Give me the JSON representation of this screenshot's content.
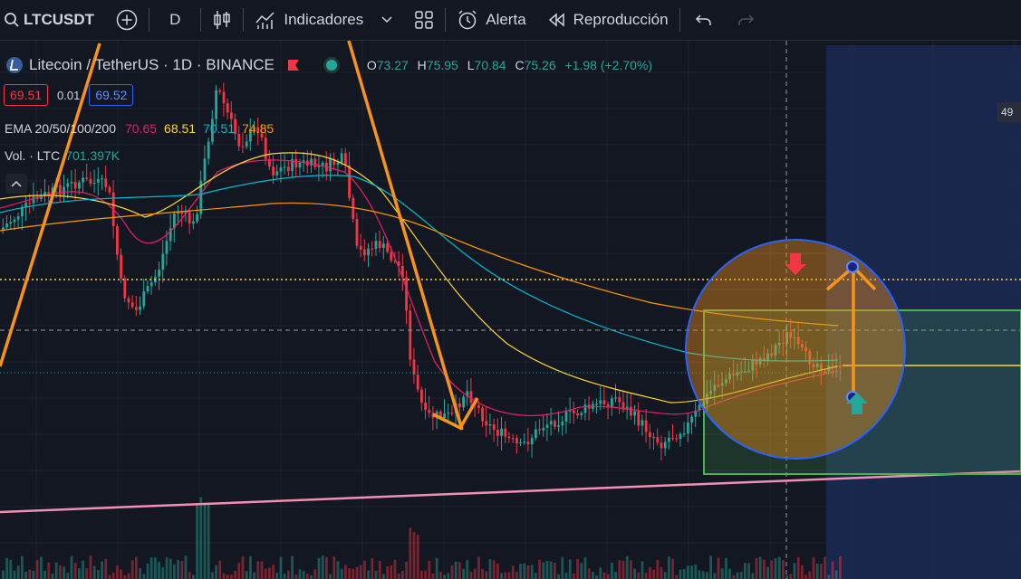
{
  "toolbar": {
    "symbol": "LTCUSDT",
    "interval": "D",
    "indicators_label": "Indicadores",
    "alert_label": "Alerta",
    "replay_label": "Reproducción"
  },
  "legend": {
    "title": "Litecoin / TetherUS · 1D · BINANCE",
    "ohlc": {
      "o_label": "O",
      "o": "73.27",
      "h_label": "H",
      "h": "75.95",
      "l_label": "L",
      "l": "70.84",
      "c_label": "C",
      "c": "75.26",
      "change": "+1.98 (+2.70%)"
    },
    "sell_price": "69.51",
    "spread": "0.01",
    "buy_price": "69.52",
    "ema": {
      "label": "EMA 20/50/100/200",
      "v20": "70.65",
      "v50": "68.51",
      "v100": "70.51",
      "v200": "74.85"
    },
    "volume": {
      "label": "Vol. · LTC",
      "value": "701.397K"
    },
    "price_tag": "49"
  },
  "colors": {
    "background": "#131722",
    "up": "#26a69a",
    "down": "#f23645",
    "ema20": "#e91e63",
    "ema50": "#fdd835",
    "ema100": "#00bcd4",
    "ema200": "#ff9800",
    "drawing_orange": "#f7931a",
    "support_pink": "#f48fb1",
    "circle_blue": "#2962ff",
    "box_green": "#4caf50"
  },
  "icons": {
    "search": "search-icon",
    "add": "plus-circle-icon",
    "candles": "candles-icon",
    "indicators": "indicators-icon",
    "templates": "grid-icon",
    "alert": "alarm-clock-icon",
    "replay": "rewind-icon",
    "undo": "undo-icon",
    "redo": "redo-icon"
  }
}
